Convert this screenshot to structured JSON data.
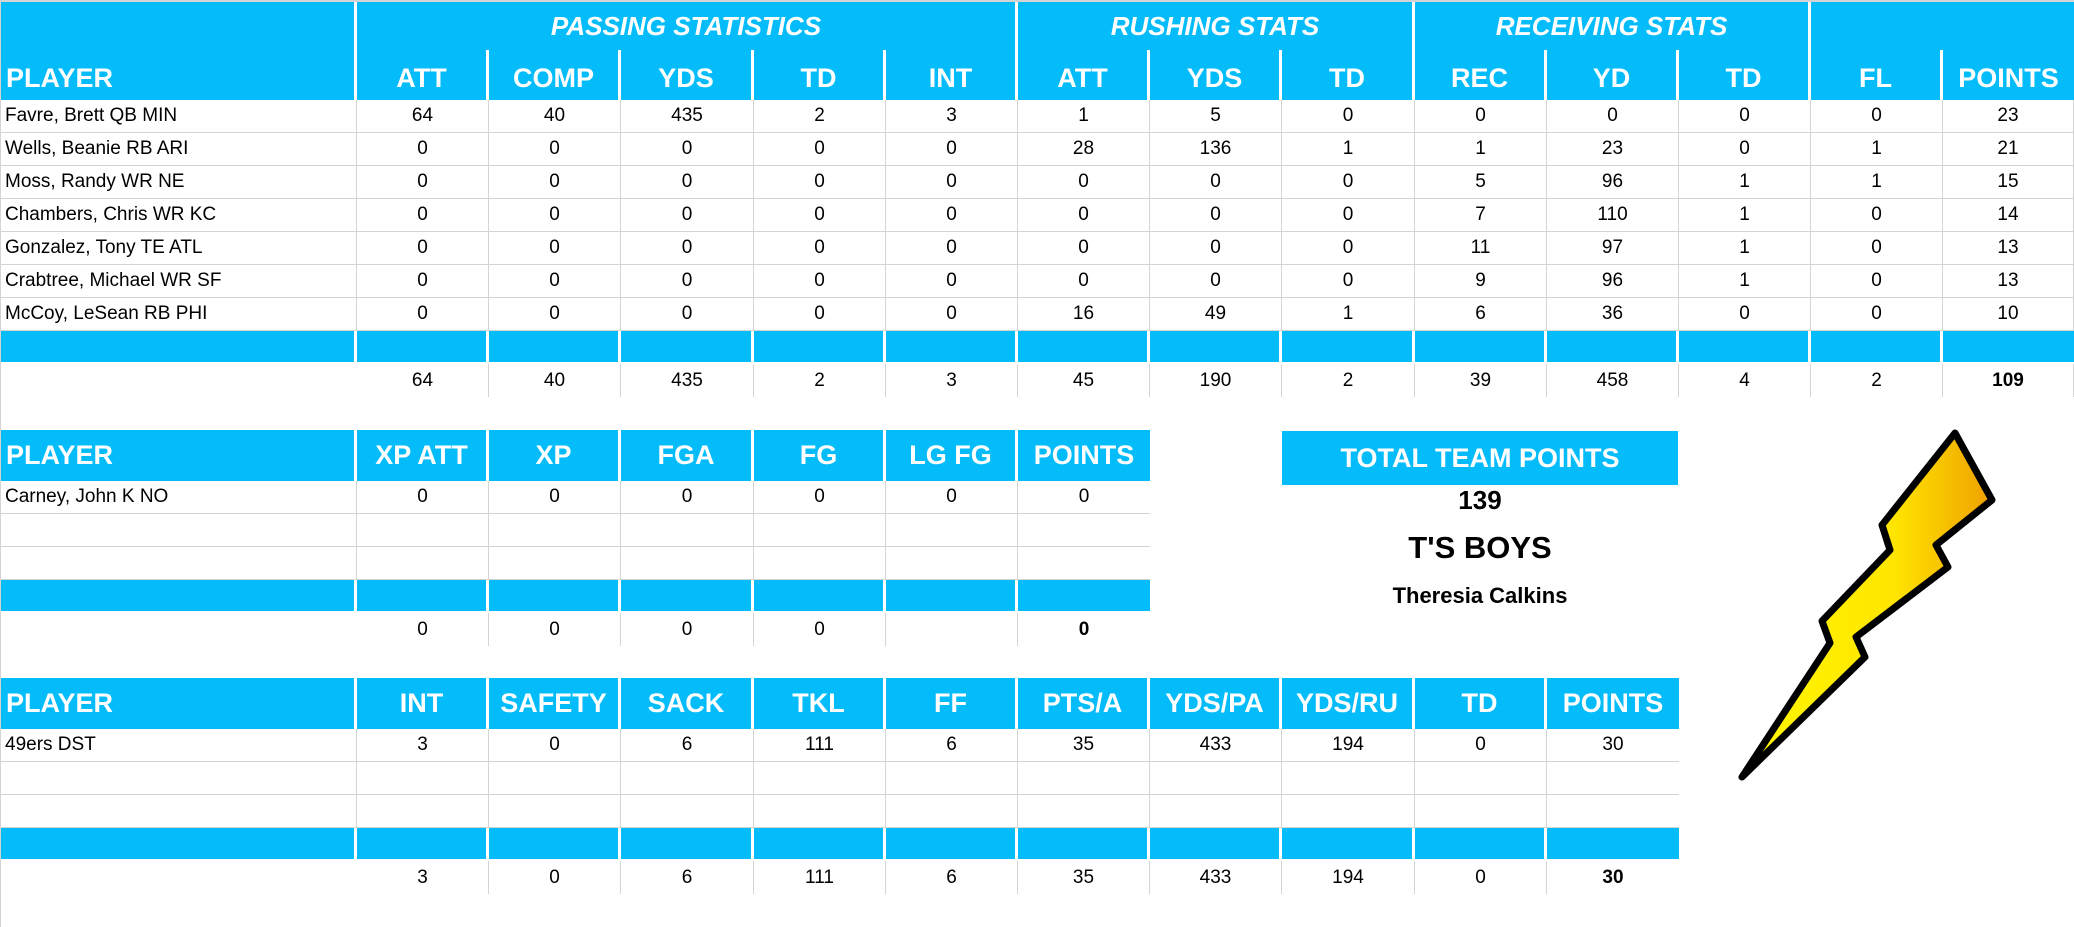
{
  "colors": {
    "header_blue": "#05bcfa",
    "gridline": "#d4d4d4",
    "text": "#000000",
    "header_text": "#ffffff"
  },
  "offense": {
    "groups": [
      {
        "label": "PASSING STATISTICS"
      },
      {
        "label": "RUSHING STATS"
      },
      {
        "label": "RECEIVING STATS"
      },
      {
        "label": ""
      }
    ],
    "columns": [
      "PLAYER",
      "ATT",
      "COMP",
      "YDS",
      "TD",
      "INT",
      "ATT",
      "YDS",
      "TD",
      "REC",
      "YD",
      "TD",
      "FL",
      "POINTS"
    ],
    "rows": [
      [
        "Favre, Brett QB MIN",
        "64",
        "40",
        "435",
        "2",
        "3",
        "1",
        "5",
        "0",
        "0",
        "0",
        "0",
        "0",
        "23"
      ],
      [
        "Wells, Beanie RB ARI",
        "0",
        "0",
        "0",
        "0",
        "0",
        "28",
        "136",
        "1",
        "1",
        "23",
        "0",
        "1",
        "21"
      ],
      [
        "Moss, Randy WR NE",
        "0",
        "0",
        "0",
        "0",
        "0",
        "0",
        "0",
        "0",
        "5",
        "96",
        "1",
        "1",
        "15"
      ],
      [
        "Chambers, Chris WR KC",
        "0",
        "0",
        "0",
        "0",
        "0",
        "0",
        "0",
        "0",
        "7",
        "110",
        "1",
        "0",
        "14"
      ],
      [
        "Gonzalez, Tony TE ATL",
        "0",
        "0",
        "0",
        "0",
        "0",
        "0",
        "0",
        "0",
        "11",
        "97",
        "1",
        "0",
        "13"
      ],
      [
        "Crabtree, Michael WR SF",
        "0",
        "0",
        "0",
        "0",
        "0",
        "0",
        "0",
        "0",
        "9",
        "96",
        "1",
        "0",
        "13"
      ],
      [
        "McCoy, LeSean RB PHI",
        "0",
        "0",
        "0",
        "0",
        "0",
        "16",
        "49",
        "1",
        "6",
        "36",
        "0",
        "0",
        "10"
      ]
    ],
    "totals": [
      "",
      "64",
      "40",
      "435",
      "2",
      "3",
      "45",
      "190",
      "2",
      "39",
      "458",
      "4",
      "2",
      "109"
    ]
  },
  "kicker": {
    "columns": [
      "PLAYER",
      "XP ATT",
      "XP",
      "FGA",
      "FG",
      "LG FG",
      "POINTS"
    ],
    "rows": [
      [
        "Carney, John K NO",
        "0",
        "0",
        "0",
        "0",
        "0",
        "0"
      ],
      [
        "",
        "",
        "",
        "",
        "",
        "",
        ""
      ],
      [
        "",
        "",
        "",
        "",
        "",
        "",
        ""
      ]
    ],
    "totals": [
      "",
      "0",
      "0",
      "0",
      "0",
      "",
      "0"
    ]
  },
  "defense": {
    "columns": [
      "PLAYER",
      "INT",
      "SAFETY",
      "SACK",
      "TKL",
      "FF",
      "PTS/A",
      "YDS/PA",
      "YDS/RU",
      "TD",
      "POINTS"
    ],
    "rows": [
      [
        "49ers DST",
        "3",
        "0",
        "6",
        "111",
        "6",
        "35",
        "433",
        "194",
        "0",
        "30"
      ],
      [
        "",
        "",
        "",
        "",
        "",
        "",
        "",
        "",
        "",
        "",
        ""
      ],
      [
        "",
        "",
        "",
        "",
        "",
        "",
        "",
        "",
        "",
        "",
        ""
      ]
    ],
    "totals": [
      "",
      "3",
      "0",
      "6",
      "111",
      "6",
      "35",
      "433",
      "194",
      "0",
      "30"
    ]
  },
  "team": {
    "total_label": "TOTAL TEAM POINTS",
    "total_value": "139",
    "name": "T'S BOYS",
    "owner": "Theresia Calkins",
    "logo_icon": "lightning-bolt-icon"
  }
}
